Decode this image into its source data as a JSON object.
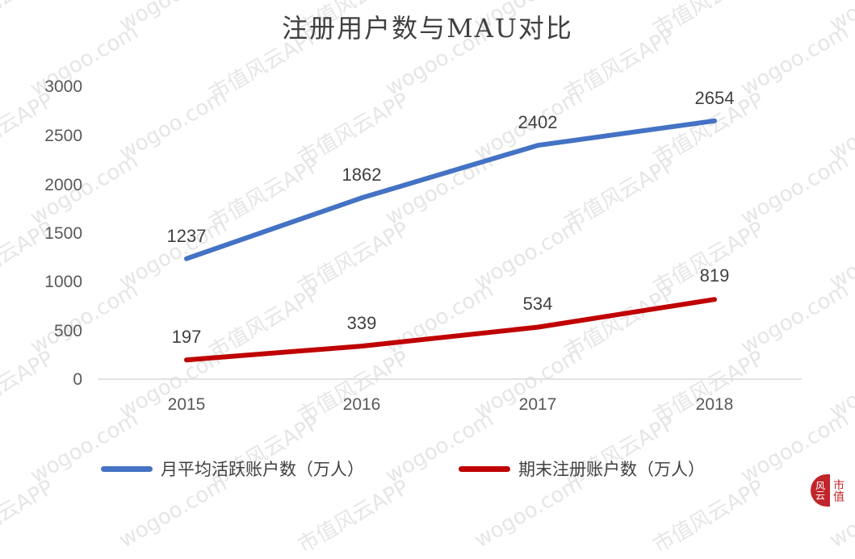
{
  "chart_data": {
    "type": "line",
    "title": "注册用户数与MAU对比",
    "categories": [
      "2015",
      "2016",
      "2017",
      "2018"
    ],
    "series": [
      {
        "name": "月平均活跃账户数（万人）",
        "color": "#4472c4",
        "values": [
          1237,
          1862,
          2402,
          2654
        ]
      },
      {
        "name": "期末注册账户数（万人）",
        "color": "#c00000",
        "values": [
          197,
          339,
          534,
          819
        ]
      }
    ],
    "xlabel": "",
    "ylabel": "",
    "ylim": [
      0,
      3000
    ],
    "yticks": [
      "3000",
      "2500",
      "2000",
      "1500",
      "1000",
      "500",
      "0"
    ],
    "grid": false,
    "legend_position": "bottom",
    "data_labels": true
  },
  "watermark": {
    "text_cn": "市值风云APP",
    "text_url": "wogoo.com"
  },
  "logo": {
    "left_glyph": "风云",
    "right_text": "市值"
  }
}
